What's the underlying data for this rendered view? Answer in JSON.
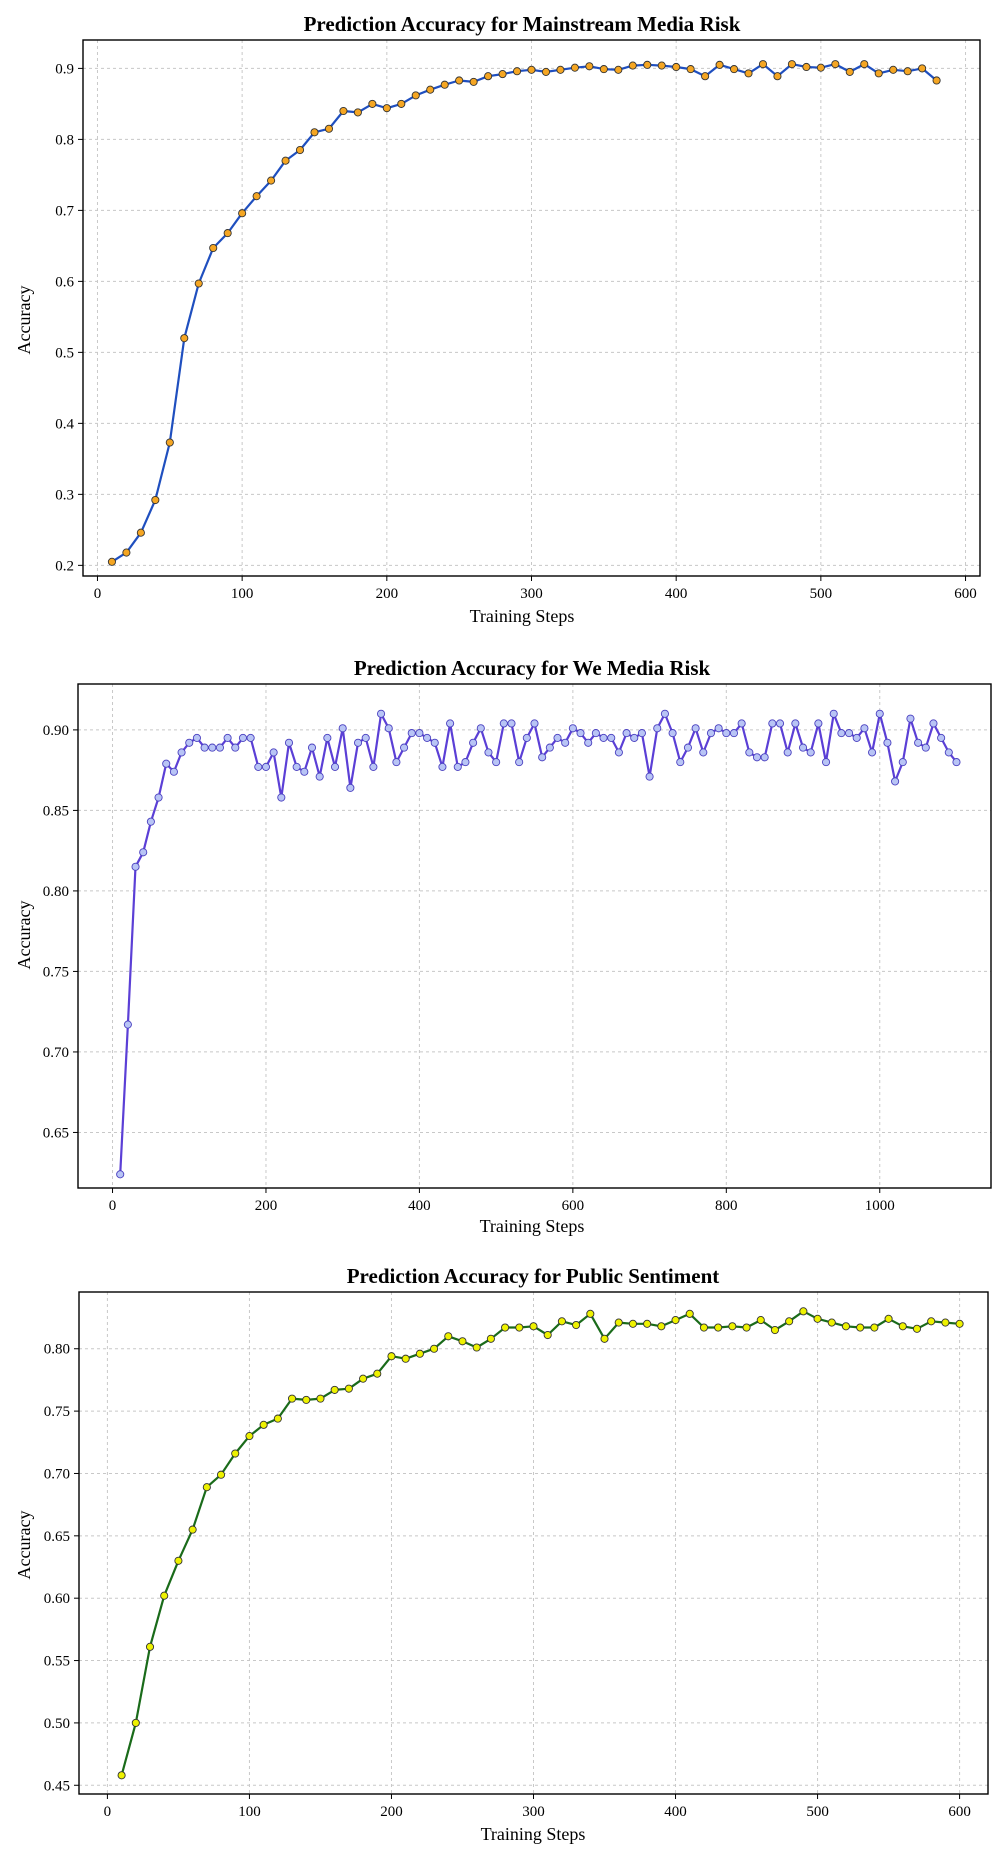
{
  "chart_data": [
    {
      "type": "line",
      "title": "Prediction Accuracy for Mainstream Media Risk",
      "xlabel": "Training Steps",
      "ylabel": "Accuracy",
      "xlim": [
        -10,
        610
      ],
      "ylim": [
        0.185,
        0.94
      ],
      "xticks": [
        0,
        100,
        200,
        300,
        400,
        500,
        600
      ],
      "yticks": [
        0.2,
        0.3,
        0.4,
        0.5,
        0.6,
        0.7,
        0.8,
        0.9
      ],
      "tick_decimals": 1,
      "grid": true,
      "line_color": "#1f4fbf",
      "marker_color": "#f5a623",
      "marker_edge": "#333333",
      "series": [
        {
          "x": [
            10,
            20,
            30,
            40,
            50,
            60,
            70,
            80,
            90,
            100,
            110,
            120,
            130,
            140,
            150,
            160,
            170,
            180,
            190,
            200,
            210,
            220,
            230,
            240,
            250,
            260,
            270,
            280,
            290,
            300,
            310,
            320,
            330,
            340,
            350,
            360,
            370,
            380,
            390,
            400,
            410,
            420,
            430,
            440,
            450,
            460,
            470,
            480,
            490,
            500,
            510,
            520,
            530,
            540,
            550,
            560,
            570,
            580
          ],
          "y": [
            0.205,
            0.218,
            0.246,
            0.292,
            0.373,
            0.52,
            0.597,
            0.647,
            0.668,
            0.696,
            0.72,
            0.742,
            0.77,
            0.785,
            0.81,
            0.815,
            0.84,
            0.838,
            0.85,
            0.844,
            0.85,
            0.862,
            0.87,
            0.877,
            0.883,
            0.881,
            0.889,
            0.892,
            0.896,
            0.898,
            0.895,
            0.898,
            0.901,
            0.903,
            0.899,
            0.898,
            0.904,
            0.905,
            0.904,
            0.902,
            0.899,
            0.889,
            0.905,
            0.899,
            0.893,
            0.906,
            0.889,
            0.906,
            0.902,
            0.901,
            0.906,
            0.895,
            0.906,
            0.893,
            0.898,
            0.896,
            0.9,
            0.883
          ]
        }
      ]
    },
    {
      "type": "line",
      "title": "Prediction Accuracy for We Media Risk",
      "xlabel": "Training Steps",
      "ylabel": "Accuracy",
      "xlim": [
        -45,
        1145
      ],
      "ylim": [
        0.6155,
        0.9285
      ],
      "xticks": [
        0,
        200,
        400,
        600,
        800,
        1000
      ],
      "yticks": [
        0.65,
        0.7,
        0.75,
        0.8,
        0.85,
        0.9
      ],
      "tick_decimals": 2,
      "grid": true,
      "line_color": "#5b3fd6",
      "marker_color": "#b8c4f5",
      "marker_edge": "#4a40c0",
      "series": [
        {
          "x": [
            10,
            20,
            30,
            40,
            50,
            60,
            70,
            80,
            90,
            100,
            110,
            120,
            130,
            140,
            150,
            160,
            170,
            180,
            190,
            200,
            210,
            220,
            230,
            240,
            250,
            260,
            270,
            280,
            290,
            300,
            310,
            320,
            330,
            340,
            350,
            360,
            370,
            380,
            390,
            400,
            410,
            420,
            430,
            440,
            450,
            460,
            470,
            480,
            490,
            500,
            510,
            520,
            530,
            540,
            550,
            560,
            570,
            580,
            590,
            600,
            610,
            620,
            630,
            640,
            650,
            660,
            670,
            680,
            690,
            700,
            710,
            720,
            730,
            740,
            750,
            760,
            770,
            780,
            790,
            800,
            810,
            820,
            830,
            840,
            850,
            860,
            870,
            880,
            890,
            900,
            910,
            920,
            930,
            940,
            950,
            960,
            970,
            980,
            990,
            1000,
            1010,
            1020,
            1030,
            1040,
            1050,
            1060,
            1070,
            1080,
            1090,
            1100
          ],
          "y": [
            0.624,
            0.717,
            0.815,
            0.824,
            0.843,
            0.858,
            0.879,
            0.874,
            0.886,
            0.892,
            0.895,
            0.889,
            0.889,
            0.889,
            0.895,
            0.889,
            0.895,
            0.895,
            0.877,
            0.877,
            0.886,
            0.858,
            0.892,
            0.877,
            0.874,
            0.889,
            0.871,
            0.895,
            0.877,
            0.901,
            0.864,
            0.892,
            0.895,
            0.877,
            0.91,
            0.901,
            0.88,
            0.889,
            0.898,
            0.898,
            0.895,
            0.892,
            0.877,
            0.904,
            0.877,
            0.88,
            0.892,
            0.901,
            0.886,
            0.88,
            0.904,
            0.904,
            0.88,
            0.895,
            0.904,
            0.883,
            0.889,
            0.895,
            0.892,
            0.901,
            0.898,
            0.892,
            0.898,
            0.895,
            0.895,
            0.886,
            0.898,
            0.895,
            0.898,
            0.871,
            0.901,
            0.91,
            0.898,
            0.88,
            0.889,
            0.901,
            0.886,
            0.898,
            0.901,
            0.898,
            0.898,
            0.904,
            0.886,
            0.883,
            0.883,
            0.904,
            0.904,
            0.886,
            0.904,
            0.889,
            0.886,
            0.904,
            0.88,
            0.91,
            0.898,
            0.898,
            0.895,
            0.901,
            0.886,
            0.91,
            0.892,
            0.868,
            0.88,
            0.907,
            0.892,
            0.889,
            0.904,
            0.895,
            0.886,
            0.88
          ]
        }
      ]
    },
    {
      "type": "line",
      "title": "Prediction Accuracy for Public Sentiment",
      "xlabel": "Training Steps",
      "ylabel": "Accuracy",
      "xlim": [
        -20,
        620
      ],
      "ylim": [
        0.443,
        0.8455
      ],
      "xticks": [
        0,
        100,
        200,
        300,
        400,
        500,
        600
      ],
      "yticks": [
        0.45,
        0.5,
        0.55,
        0.6,
        0.65,
        0.7,
        0.75,
        0.8
      ],
      "tick_decimals": 2,
      "grid": true,
      "line_color": "#1a6b1a",
      "marker_color": "#eef200",
      "marker_edge": "#333333",
      "series": [
        {
          "x": [
            10,
            20,
            30,
            40,
            50,
            60,
            70,
            80,
            90,
            100,
            110,
            120,
            130,
            140,
            150,
            160,
            170,
            180,
            190,
            200,
            210,
            220,
            230,
            240,
            250,
            260,
            270,
            280,
            290,
            300,
            310,
            320,
            330,
            340,
            350,
            360,
            370,
            380,
            390,
            400,
            410,
            420,
            430,
            440,
            450,
            460,
            470,
            480,
            490,
            500,
            510,
            520,
            530,
            540,
            550,
            560,
            570,
            580,
            590,
            600
          ],
          "y": [
            0.458,
            0.5,
            0.561,
            0.602,
            0.63,
            0.655,
            0.689,
            0.699,
            0.716,
            0.73,
            0.739,
            0.744,
            0.76,
            0.759,
            0.76,
            0.767,
            0.768,
            0.776,
            0.78,
            0.794,
            0.792,
            0.796,
            0.8,
            0.81,
            0.806,
            0.801,
            0.808,
            0.817,
            0.817,
            0.818,
            0.811,
            0.822,
            0.819,
            0.828,
            0.808,
            0.821,
            0.82,
            0.82,
            0.818,
            0.823,
            0.828,
            0.817,
            0.817,
            0.818,
            0.817,
            0.823,
            0.815,
            0.822,
            0.83,
            0.824,
            0.821,
            0.818,
            0.817,
            0.817,
            0.824,
            0.818,
            0.816,
            0.822,
            0.821,
            0.82
          ]
        }
      ]
    }
  ]
}
